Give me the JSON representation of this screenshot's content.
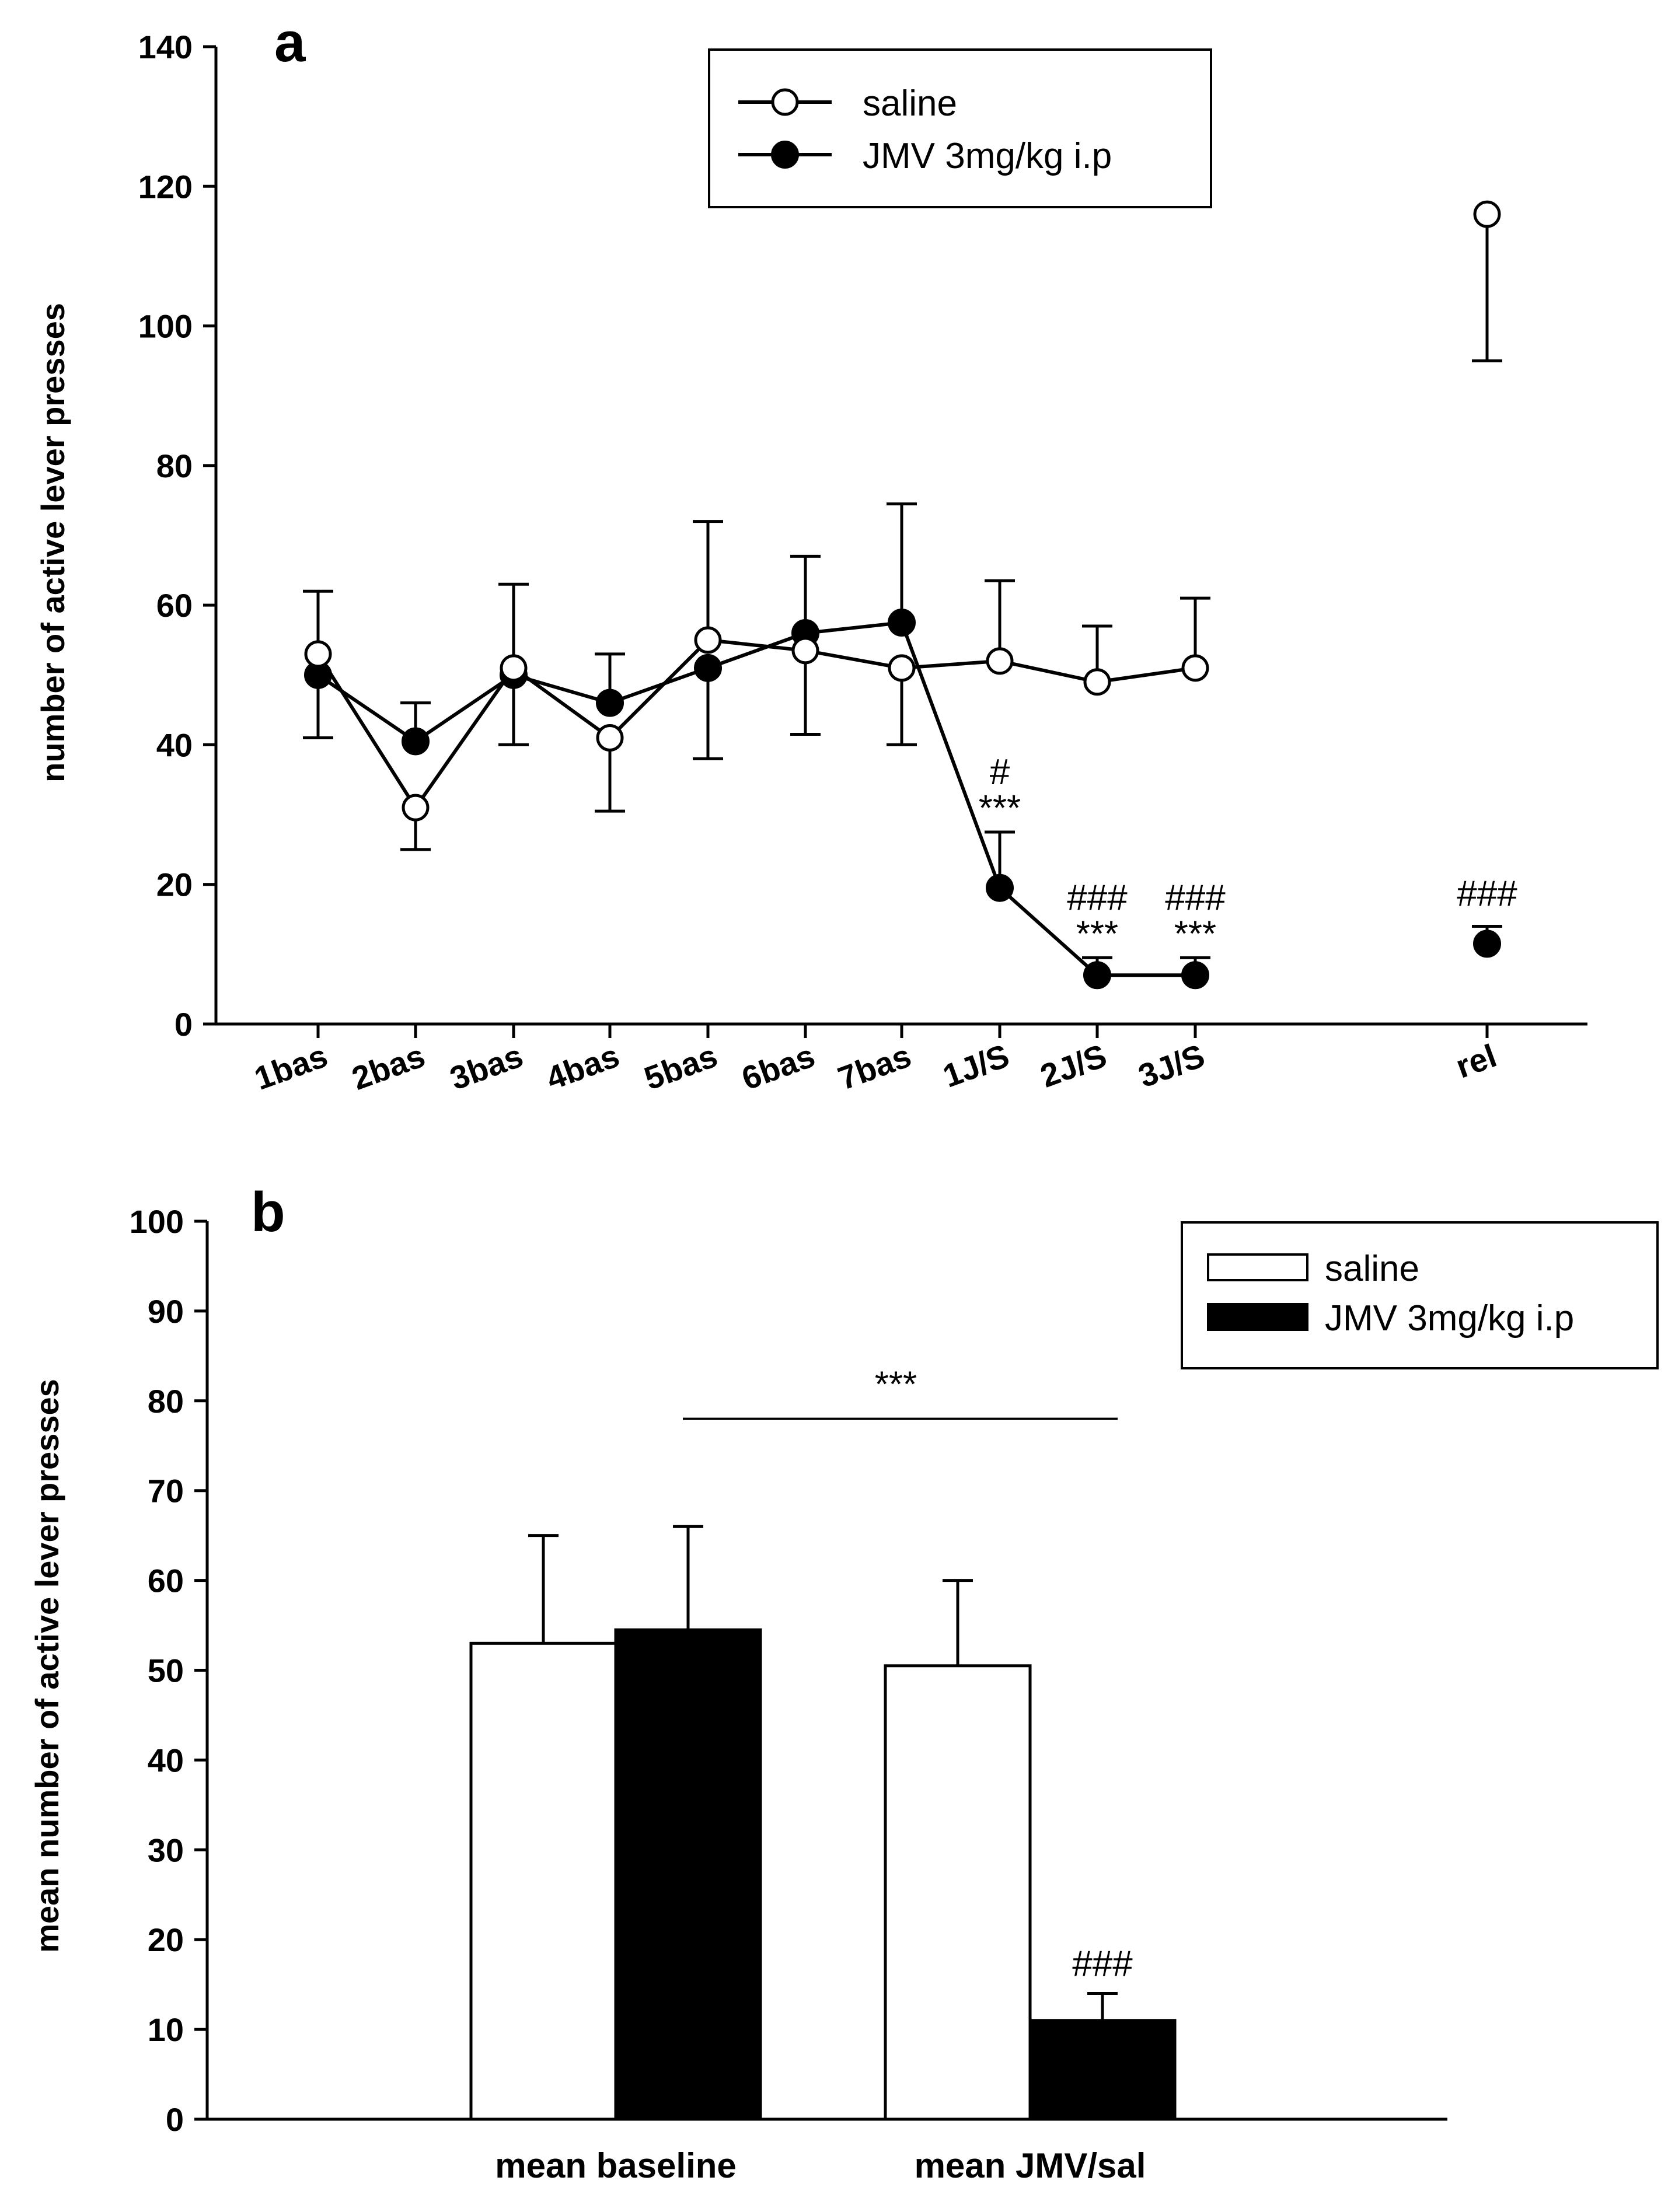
{
  "chart_data": [
    {
      "panel_label": "a",
      "type": "line",
      "ylabel": "number of active lever presses",
      "ylim": [
        0,
        140
      ],
      "yticks": [
        "0",
        "20",
        "40",
        "60",
        "80",
        "100",
        "120",
        "140"
      ],
      "categories": [
        "1bas",
        "2bas",
        "3bas",
        "4bas",
        "5bas",
        "6bas",
        "7bas",
        "1J/S",
        "2J/S",
        "3J/S",
        "rel"
      ],
      "legend": [
        "saline",
        "JMV 3mg/kg i.p"
      ],
      "series": [
        {
          "name": "saline",
          "marker": "open-circle",
          "values": [
            53,
            31,
            51,
            41,
            55,
            53.5,
            51,
            52,
            49,
            51,
            116
          ],
          "errors": [
            9,
            6,
            12,
            10.5,
            17,
            12,
            11,
            11.5,
            8,
            10,
            21
          ],
          "error_direction": [
            "up",
            "down",
            "up",
            "down",
            "up",
            "down",
            "down",
            "up",
            "up",
            "up",
            "down"
          ]
        },
        {
          "name": "JMV 3mg/kg i.p",
          "marker": "filled-circle",
          "values": [
            50,
            40.5,
            50,
            46,
            51,
            56,
            57.5,
            19.5,
            7,
            7,
            11.5
          ],
          "errors": [
            9,
            5.5,
            10,
            7,
            13,
            11,
            17,
            8,
            2.5,
            2.5,
            2.5
          ],
          "error_direction": [
            "down",
            "up",
            "down",
            "up",
            "down",
            "up",
            "up",
            "up",
            "up",
            "up",
            "up"
          ]
        }
      ],
      "annotations": [
        {
          "category": "1J/S",
          "lines": [
            "#",
            "***"
          ]
        },
        {
          "category": "2J/S",
          "lines": [
            "###",
            "***"
          ]
        },
        {
          "category": "3J/S",
          "lines": [
            "###",
            "***"
          ]
        },
        {
          "category": "rel",
          "lines": [
            "###"
          ]
        }
      ]
    },
    {
      "panel_label": "b",
      "type": "bar",
      "ylabel": "mean number of active lever presses",
      "ylim": [
        0,
        100
      ],
      "yticks": [
        "0",
        "10",
        "20",
        "30",
        "40",
        "50",
        "60",
        "70",
        "80",
        "90",
        "100"
      ],
      "categories": [
        "mean baseline",
        "mean JMV/sal"
      ],
      "legend": [
        "saline",
        "JMV 3mg/kg i.p"
      ],
      "series": [
        {
          "name": "saline",
          "fill": "#ffffff",
          "values": [
            53,
            50.5
          ],
          "errors": [
            12,
            9.5
          ]
        },
        {
          "name": "JMV 3mg/kg i.p",
          "fill": "#000000",
          "values": [
            54.5,
            11
          ],
          "errors": [
            11.5,
            3
          ]
        }
      ],
      "annotations": [
        {
          "text": "***",
          "type": "significance-bracket",
          "between": [
            "mean baseline",
            "mean JMV/sal"
          ]
        },
        {
          "text": "###",
          "category": "mean JMV/sal",
          "series": "JMV 3mg/kg i.p"
        }
      ]
    }
  ]
}
